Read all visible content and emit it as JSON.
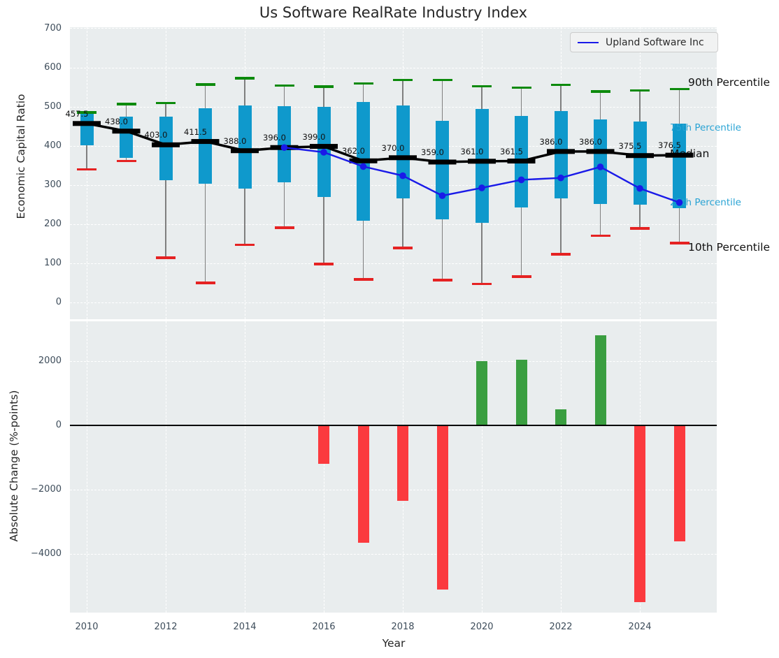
{
  "title": "Us Software RealRate Industry Index",
  "legend": {
    "label": "Upland Software Inc"
  },
  "annotations": {
    "p90": "90th Percentile",
    "p75": "75th Percentile",
    "median": "Median",
    "p25": "25th Percentile",
    "p10": "10th Percentile"
  },
  "colors": {
    "box_fill": "#0f99cc",
    "p90_cap": "#0c8a0c",
    "p10_cap": "#e52222",
    "whisker": "#7f7f7f",
    "median_line": "#000000",
    "company_line": "#1a1ae8",
    "bar_positive": "#3a9e40",
    "bar_negative": "#fb3a3e",
    "plot_background": "#e9edee",
    "tick_text": "#3d4c5a"
  },
  "chart_data": [
    {
      "type": "boxplot+line",
      "title": "Us Software RealRate Industry Index",
      "ylabel": "Economic Capital Ratio",
      "xlabel": "Year",
      "ylim": [
        0,
        700
      ],
      "yticks": [
        0,
        100,
        200,
        300,
        400,
        500,
        600,
        700
      ],
      "grid": true,
      "legend_position": "upper right",
      "legend_entries": [
        "Upland Software Inc"
      ],
      "years": [
        2010,
        2011,
        2012,
        2013,
        2014,
        2015,
        2016,
        2017,
        2018,
        2019,
        2020,
        2021,
        2022,
        2023,
        2024,
        2025
      ],
      "p10": [
        340,
        362,
        114,
        50,
        147,
        191,
        98,
        59,
        139,
        57,
        47,
        66,
        123,
        170,
        189,
        152
      ],
      "p25": [
        402,
        370,
        312,
        304,
        291,
        308,
        269,
        209,
        266,
        213,
        203,
        242,
        266,
        252,
        250,
        241
      ],
      "median": [
        457.5,
        438.0,
        403.0,
        411.5,
        388.0,
        396.0,
        399.0,
        362.0,
        370.0,
        359.0,
        361.0,
        361.5,
        386.0,
        386.0,
        375.5,
        376.5
      ],
      "p75": [
        482,
        475,
        475,
        497,
        504,
        502,
        500,
        513,
        504,
        465,
        495,
        477,
        490,
        467,
        462,
        458
      ],
      "p90": [
        486,
        507,
        510,
        557,
        573,
        555,
        552,
        560,
        569,
        569,
        553,
        549,
        556,
        539,
        542,
        545
      ],
      "median_labels": [
        "457.5",
        "438.0",
        "403.0",
        "411.5",
        "388.0",
        "396.0",
        "399.0",
        "362.0",
        "370.0",
        "359.0",
        "361.0",
        "361.5",
        "386.0",
        "386.0",
        "375.5",
        "376.5"
      ],
      "series": [
        {
          "name": "Upland Software Inc",
          "x": [
            2015,
            2016,
            2017,
            2018,
            2019,
            2020,
            2021,
            2022,
            2023,
            2024,
            2025
          ],
          "values": [
            396,
            384,
            347.5,
            324,
            273,
            293,
            313.5,
            318.5,
            346.5,
            291.5,
            255.5
          ]
        }
      ]
    },
    {
      "type": "bar",
      "ylabel": "Absolute Change (%-points)",
      "xlabel": "Year",
      "ylim": [
        -5850,
        3250
      ],
      "yticks": [
        2000,
        0,
        -2000,
        -4000
      ],
      "xticks": [
        2010,
        2012,
        2014,
        2016,
        2018,
        2020,
        2022,
        2024
      ],
      "grid": true,
      "categories": [
        2016,
        2017,
        2018,
        2019,
        2020,
        2021,
        2022,
        2023,
        2024,
        2025
      ],
      "values": [
        -1200,
        -3650,
        -2350,
        -5100,
        2000,
        2050,
        500,
        2800,
        -5500,
        -3600
      ]
    }
  ]
}
